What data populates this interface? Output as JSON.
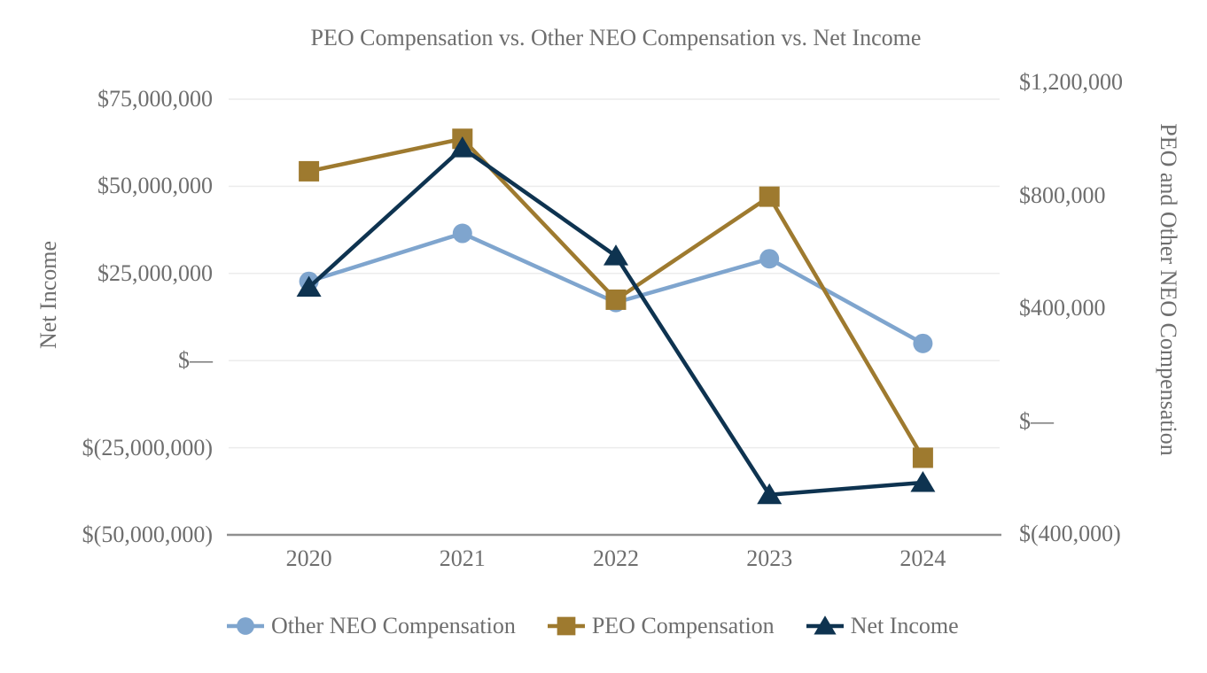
{
  "chart_data": {
    "type": "line",
    "title": "PEO Compensation vs. Other NEO Compensation vs. Net Income",
    "categories": [
      "2020",
      "2021",
      "2022",
      "2023",
      "2024"
    ],
    "left_axis": {
      "title": "Net Income",
      "tick_labels": [
        "$75,000,000",
        "$50,000,000",
        "$25,000,000",
        "$—",
        "$(25,000,000)",
        "$(50,000,000)"
      ],
      "tick_values": [
        75000000,
        50000000,
        25000000,
        0,
        -25000000,
        -50000000
      ],
      "range": [
        -50000000,
        75000000
      ]
    },
    "right_axis": {
      "title": "PEO and Other NEO Compensation",
      "tick_labels": [
        "$1,200,000",
        "$800,000",
        "$400,000",
        "$—",
        "$(400,000)"
      ],
      "tick_values": [
        1200000,
        800000,
        400000,
        0,
        -400000
      ],
      "range": [
        -400000,
        1200000
      ]
    },
    "series": [
      {
        "name": "Other NEO Compensation",
        "axis": "right",
        "marker": "circle",
        "color": "#7FA5CE",
        "values": [
          495000,
          665000,
          420000,
          575000,
          275000
        ]
      },
      {
        "name": "PEO Compensation",
        "axis": "right",
        "marker": "square",
        "color": "#9E7A2F",
        "values": [
          885000,
          1000000,
          430000,
          795000,
          -130000
        ]
      },
      {
        "name": "Net Income",
        "axis": "left",
        "marker": "triangle",
        "color": "#0E3350",
        "values": [
          21000000,
          61000000,
          30000000,
          -38500000,
          -35000000
        ]
      }
    ],
    "grid": true,
    "legend_position": "bottom"
  },
  "colors": {
    "text": "#6E6E6E",
    "gridline": "#ECECEC",
    "axis_line": "#8F8F8F",
    "background": "#FFFFFF"
  }
}
